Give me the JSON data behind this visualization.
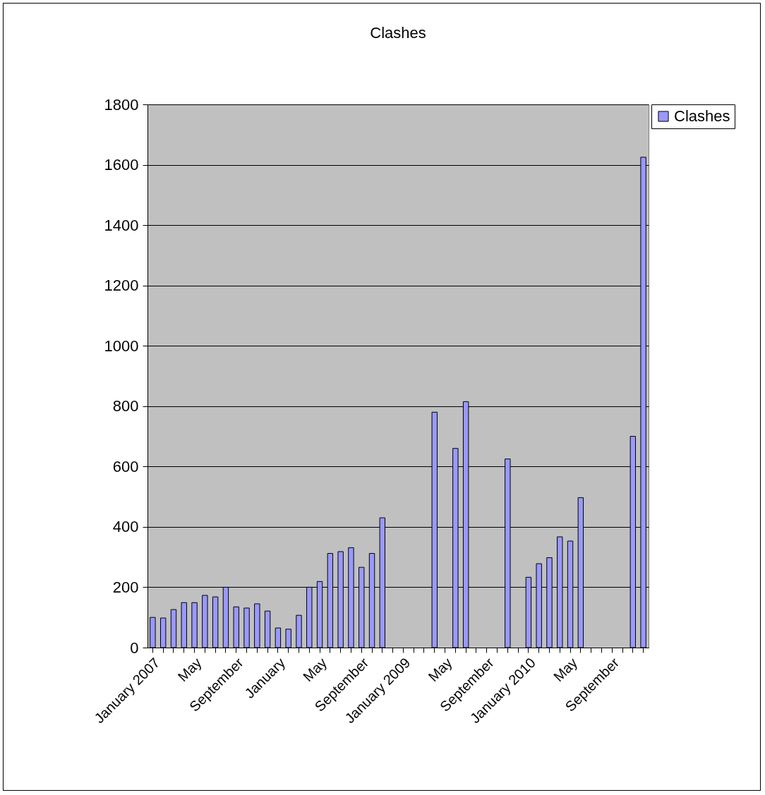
{
  "chart_data": {
    "type": "bar",
    "title": "Clashes",
    "categories": [
      "January 2007",
      null,
      null,
      null,
      "May",
      null,
      null,
      null,
      "September",
      null,
      null,
      null,
      "January",
      null,
      null,
      null,
      "May",
      null,
      null,
      null,
      "September",
      null,
      null,
      null,
      "January 2009",
      null,
      null,
      null,
      "May",
      null,
      null,
      null,
      "September",
      null,
      null,
      null,
      "January 2010",
      null,
      null,
      null,
      "May",
      null,
      null,
      null,
      "September",
      null,
      null,
      null
    ],
    "series": [
      {
        "name": "Clashes",
        "color": "#9999ff",
        "values": [
          100,
          98,
          126,
          149,
          149,
          173,
          168,
          200,
          135,
          131,
          145,
          121,
          65,
          61,
          107,
          200,
          219,
          312,
          318,
          331,
          266,
          312,
          430,
          null,
          null,
          null,
          null,
          780,
          null,
          660,
          815,
          null,
          null,
          null,
          625,
          null,
          233,
          278,
          298,
          367,
          353,
          497,
          null,
          null,
          null,
          null,
          700,
          1625
        ]
      }
    ],
    "ylim": [
      0,
      1800
    ],
    "yticks": [
      0,
      200,
      400,
      600,
      800,
      1000,
      1200,
      1400,
      1600,
      1800
    ],
    "grid": "y",
    "legend": "right"
  }
}
